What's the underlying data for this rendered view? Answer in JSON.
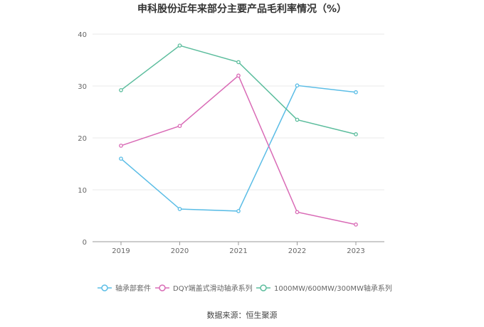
{
  "chart_data": {
    "type": "line",
    "title": "申科股份近年来部分主要产品毛利率情况（%）",
    "xlabel": "",
    "ylabel": "",
    "categories": [
      "2019",
      "2020",
      "2021",
      "2022",
      "2023"
    ],
    "ylim": [
      0,
      40
    ],
    "yticks": [
      0,
      10,
      20,
      30,
      40
    ],
    "grid": true,
    "legend_position": "bottom",
    "series": [
      {
        "name": "轴承部套件",
        "color": "#5bbde6",
        "values": [
          16.0,
          6.3,
          5.9,
          30.1,
          28.8
        ]
      },
      {
        "name": "DQY端盖式滑动轴承系列",
        "color": "#d96bb6",
        "values": [
          18.5,
          22.3,
          32.0,
          5.7,
          3.3
        ]
      },
      {
        "name": "1000MW/600MW/300MW轴承系列",
        "color": "#5cbd9d",
        "values": [
          29.2,
          37.8,
          34.6,
          23.5,
          20.7
        ]
      }
    ],
    "source": "数据来源：恒生聚源"
  }
}
